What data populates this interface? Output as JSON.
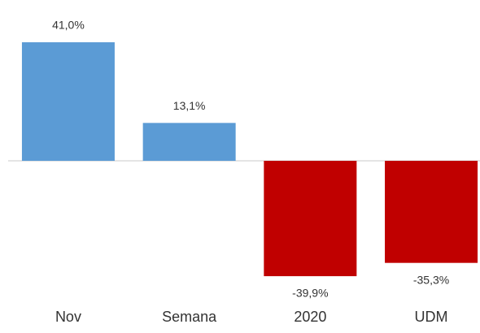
{
  "chart_data": {
    "type": "bar",
    "categories": [
      "Nov",
      "Semana",
      "2020",
      "UDM"
    ],
    "values": [
      41.0,
      13.1,
      -39.9,
      -35.3
    ],
    "value_labels": [
      "41,0%",
      "13,1%",
      "-39,9%",
      "-35,3%"
    ],
    "colors": [
      "#5b9bd5",
      "#5b9bd5",
      "#c00000",
      "#c00000"
    ]
  }
}
